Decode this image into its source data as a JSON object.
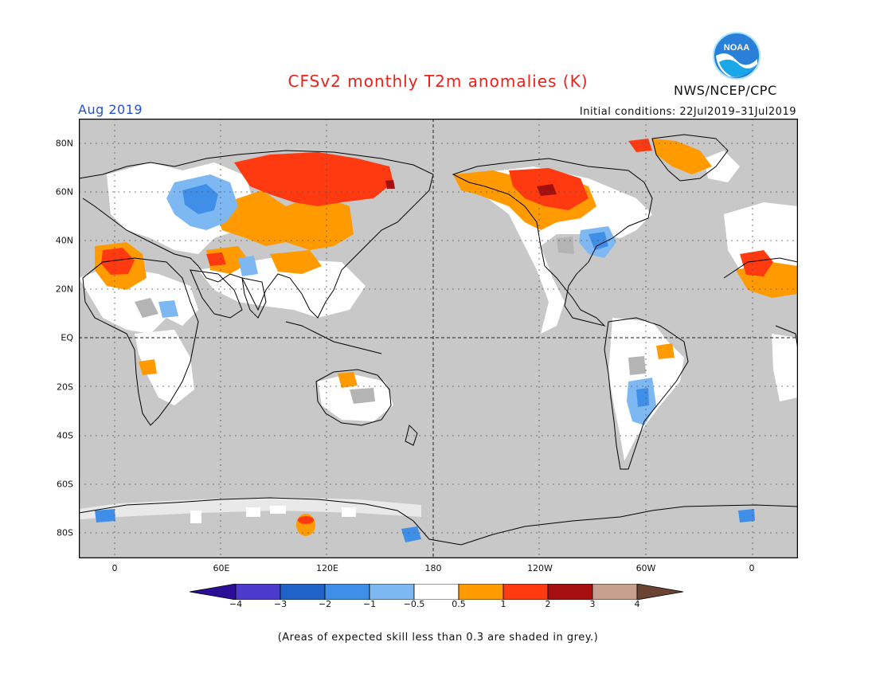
{
  "header": {
    "title": "CFSv2 monthly T2m anomalies (K)",
    "valid_month": "Aug 2019",
    "initial_conditions": "Initial conditions: 22Jul2019–31Jul2019",
    "organization": "NWS/NCEP/CPC",
    "logo_text": "NOAA"
  },
  "map": {
    "lat_labels": [
      "80N",
      "60N",
      "40N",
      "20N",
      "EQ",
      "20S",
      "40S",
      "60S",
      "80S"
    ],
    "lon_labels": [
      "0",
      "60E",
      "120E",
      "180",
      "120W",
      "60W",
      "0"
    ],
    "background_color": "#c8c8c8",
    "coastline_color": "#000000"
  },
  "colorbar": {
    "labels": [
      "−4",
      "−3",
      "−2",
      "−1",
      "−0.5",
      "0.5",
      "1",
      "2",
      "3",
      "4"
    ],
    "colors": [
      "#2a0f96",
      "#4a3bcc",
      "#1f63c8",
      "#3f8ee8",
      "#7eb8f2",
      "#ffffff",
      "#ff9a00",
      "#ff3a10",
      "#a50f0f",
      "#c8a090",
      "#6b4332"
    ]
  },
  "footer": {
    "note": "(Areas of expected skill less than 0.3 are shaded in grey.)"
  }
}
